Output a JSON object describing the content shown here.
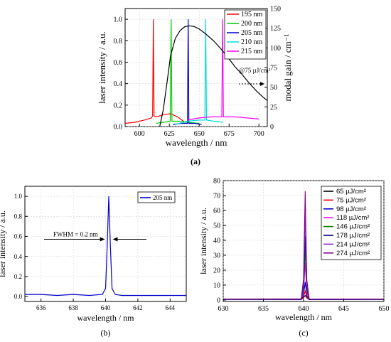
{
  "figure": {
    "panel_labels": [
      "(a)",
      "(b)",
      "(c)"
    ]
  },
  "chart_data": [
    {
      "type": "line",
      "xlabel": "wavelength / nm",
      "ylabel": "laser intensity / a.u.",
      "y2label": "modal gain / cm⁻¹",
      "xlim": [
        588,
        707
      ],
      "ylim": [
        0,
        1.1
      ],
      "y2lim": [
        0,
        150
      ],
      "xticks": [
        600,
        625,
        650,
        675,
        700
      ],
      "yticks": [
        0.0,
        0.2,
        0.4,
        0.6,
        0.8,
        1.0
      ],
      "y2ticks": [
        0,
        25,
        50,
        75,
        100,
        125,
        150
      ],
      "legend_position": "top-right",
      "annotation": "@75 µJ/cm²",
      "grid": true,
      "series": [
        {
          "name": "195 nm",
          "color": "#ff0000",
          "x": [
            588,
            596,
            604,
            610,
            611.0,
            611.6,
            612.2,
            614,
            620,
            626,
            632,
            638
          ],
          "values": [
            0.03,
            0.04,
            0.06,
            0.08,
            0.1,
            1.0,
            0.1,
            0.09,
            0.11,
            0.12,
            0.09,
            0.04
          ]
        },
        {
          "name": "200 nm",
          "color": "#00cc00",
          "x": [
            614,
            620,
            625.8,
            626.5,
            627.2,
            632,
            640,
            650
          ],
          "values": [
            0.03,
            0.04,
            0.05,
            1.0,
            0.05,
            0.05,
            0.04,
            0.03
          ]
        },
        {
          "name": "205 nm",
          "color": "#0000cc",
          "x": [
            628,
            635,
            640.2,
            640.8,
            641.4,
            646,
            652
          ],
          "values": [
            0.02,
            0.03,
            0.03,
            1.0,
            0.03,
            0.03,
            0.02
          ]
        },
        {
          "name": "210 nm",
          "color": "#00dddd",
          "x": [
            630,
            640,
            650,
            654.7,
            655.4,
            656.1,
            662,
            670
          ],
          "values": [
            0.02,
            0.05,
            0.06,
            0.06,
            1.0,
            0.06,
            0.05,
            0.04
          ]
        },
        {
          "name": "215 nm",
          "color": "#ff00ff",
          "x": [
            640,
            650,
            660,
            668.9,
            669.6,
            670.3,
            680,
            690,
            700
          ],
          "values": [
            0.06,
            0.08,
            0.09,
            0.09,
            1.0,
            0.09,
            0.09,
            0.08,
            0.07
          ]
        },
        {
          "name": "modal gain",
          "axis": "right",
          "color": "#000000",
          "x": [
            617,
            620,
            623,
            626,
            630,
            634,
            638,
            642,
            646,
            650,
            656,
            662,
            668,
            674,
            680,
            686,
            692,
            698,
            703,
            707
          ],
          "values": [
            0,
            22,
            55,
            90,
            112,
            122,
            127,
            128,
            127,
            124,
            117,
            109,
            99,
            88,
            76,
            66,
            55,
            45,
            38,
            33
          ]
        }
      ]
    },
    {
      "type": "line",
      "xlabel": "wavelength / nm",
      "ylabel": "laser intensity / a.u.",
      "xlim": [
        635,
        645
      ],
      "ylim": [
        -0.05,
        1.1
      ],
      "xticks": [
        636,
        638,
        640,
        642,
        644
      ],
      "yticks": [
        0.0,
        0.2,
        0.4,
        0.6,
        0.8,
        1.0
      ],
      "legend_position": "top-right",
      "annotation": "FWHM = 0.2 nm",
      "grid": true,
      "series": [
        {
          "name": "205 nm",
          "color": "#0000cc",
          "x": [
            635,
            636,
            637,
            638,
            639,
            639.8,
            640.0,
            640.1,
            640.2,
            640.3,
            640.4,
            640.6,
            641,
            642,
            643,
            644,
            645
          ],
          "values": [
            0.02,
            0.02,
            0.01,
            0.02,
            0.01,
            0.02,
            0.08,
            0.5,
            1.0,
            0.5,
            0.08,
            0.02,
            0.01,
            0.01,
            0.01,
            0.01,
            0.01
          ]
        }
      ]
    },
    {
      "type": "line",
      "xlabel": "wavelength / nm",
      "ylabel": "laser intensity / a.u.",
      "xlim": [
        630,
        650
      ],
      "ylim": [
        -1,
        80
      ],
      "xticks": [
        630,
        635,
        640,
        645,
        650
      ],
      "yticks": [
        0,
        10,
        20,
        30,
        40,
        50,
        60,
        70,
        80
      ],
      "legend_position": "top-right",
      "grid": true,
      "x": [
        630,
        639.7,
        640.0,
        640.2,
        640.4,
        640.7,
        650
      ],
      "series": [
        {
          "name": "65 µJ/cm²",
          "color": "#000000",
          "values": [
            0.2,
            0.3,
            1.5,
            3,
            1.5,
            0.3,
            0.2
          ]
        },
        {
          "name": "75 µJ/cm²",
          "color": "#ff0000",
          "values": [
            0.2,
            0.3,
            2,
            6,
            2,
            0.3,
            0.2
          ]
        },
        {
          "name": "98 µJ/cm²",
          "color": "#0000cc",
          "values": [
            0.2,
            0.3,
            3,
            12,
            3,
            0.3,
            0.2
          ]
        },
        {
          "name": "118 µJ/cm²",
          "color": "#ff00ff",
          "values": [
            0.3,
            0.4,
            5,
            25,
            5,
            0.4,
            0.3
          ]
        },
        {
          "name": "146 µJ/cm²",
          "color": "#008000",
          "values": [
            0.3,
            0.4,
            7,
            34,
            7,
            0.4,
            0.3
          ]
        },
        {
          "name": "178 µJ/cm²",
          "color": "#000080",
          "values": [
            0.4,
            0.5,
            9,
            43,
            9,
            0.5,
            0.4
          ]
        },
        {
          "name": "214 µJ/cm²",
          "color": "#8a2be2",
          "values": [
            0.5,
            0.6,
            11,
            57,
            11,
            0.6,
            0.5
          ]
        },
        {
          "name": "274 µJ/cm²",
          "color": "#800080",
          "values": [
            0.6,
            0.7,
            14,
            73,
            14,
            0.7,
            0.6
          ]
        }
      ]
    }
  ]
}
